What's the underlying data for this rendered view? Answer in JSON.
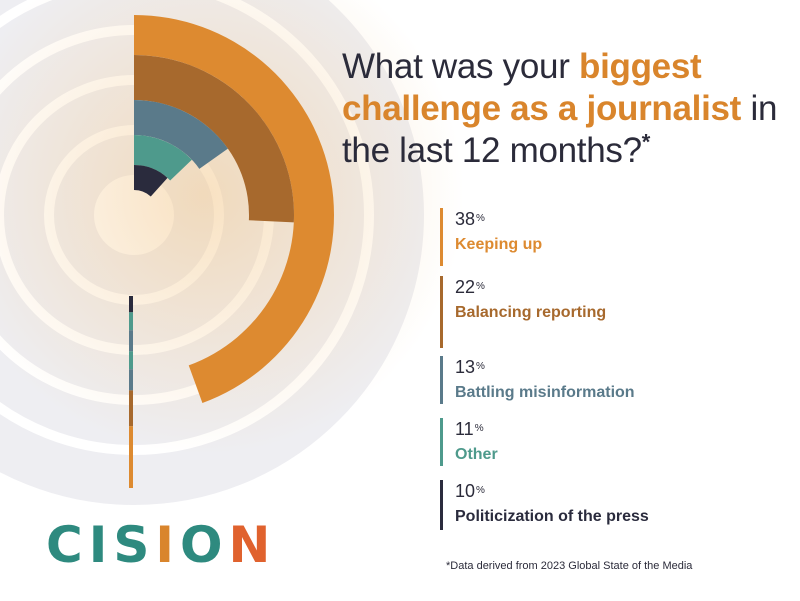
{
  "title": {
    "part1": "What was your ",
    "highlight1": "biggest challenge as a journalist",
    "part2": " in the last 12 months?",
    "asterisk": "*"
  },
  "chart_data": {
    "type": "radial-bar",
    "unit": "%",
    "series": [
      {
        "label": "Keeping up",
        "value": 38,
        "color": "#dd8a30"
      },
      {
        "label": "Balancing reporting",
        "value": 22,
        "color": "#a7692d"
      },
      {
        "label": "Battling misinformation",
        "value": 13,
        "color": "#5a7a8a"
      },
      {
        "label": "Other",
        "value": 11,
        "color": "#4e9a8c"
      },
      {
        "label": "Politicization of the press",
        "value": 10,
        "color": "#2a2b3d"
      }
    ]
  },
  "pct_symbol": "%",
  "footnote": "*Data derived from 2023 Global State of the Media",
  "logo": {
    "letters": [
      {
        "char": "C",
        "color": "#2e8a7f"
      },
      {
        "char": "I",
        "color": "#2e8a7f"
      },
      {
        "char": "S",
        "color": "#2e8a7f"
      },
      {
        "char": "I",
        "color": "#d9852c"
      },
      {
        "char": "O",
        "color": "#2e8a7f"
      },
      {
        "char": "N",
        "color": "#e0622e"
      }
    ]
  }
}
